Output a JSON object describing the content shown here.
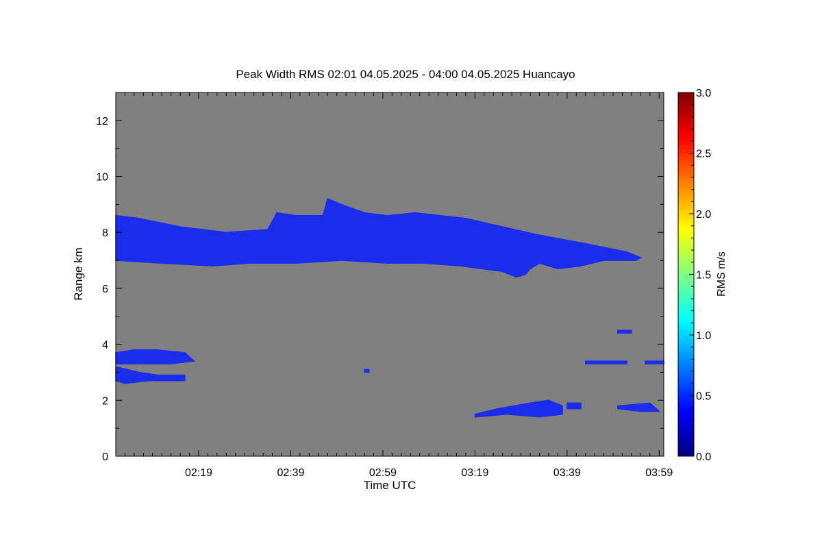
{
  "chart_data": {
    "type": "heatmap",
    "title": "Peak Width RMS   02:01 04.05.2025 - 04:00 04.05.2025 Huancayo",
    "xlabel": "Time UTC",
    "ylabel": "Range km",
    "colorbar_label": "RMS m/s",
    "x_range": [
      "02:01",
      "04:00"
    ],
    "x_ticks": [
      "02:19",
      "02:39",
      "02:59",
      "03:19",
      "03:39",
      "03:59"
    ],
    "ylim": [
      0,
      13
    ],
    "y_ticks": [
      "0",
      "2",
      "4",
      "6",
      "8",
      "10",
      "12"
    ],
    "colorbar_range": [
      0.0,
      3.0
    ],
    "colorbar_ticks": [
      "0.0",
      "0.5",
      "1.0",
      "1.5",
      "2.0",
      "2.5",
      "3.0"
    ],
    "background_color": "#808080",
    "colormap": [
      "#000080",
      "#0000ff",
      "#0080ff",
      "#00ffff",
      "#80ff80",
      "#ffff00",
      "#ff8000",
      "#ff0000",
      "#800000"
    ],
    "regions": [
      {
        "name": "upper cloud layer",
        "approx_rms": 0.4,
        "color": "#1a2cee",
        "outline": [
          [
            "02:01",
            8.6
          ],
          [
            "02:06",
            8.5
          ],
          [
            "02:15",
            8.2
          ],
          [
            "02:25",
            8.0
          ],
          [
            "02:34",
            8.1
          ],
          [
            "02:36",
            8.7
          ],
          [
            "02:40",
            8.6
          ],
          [
            "02:46",
            8.6
          ],
          [
            "02:47",
            9.2
          ],
          [
            "02:50",
            9.0
          ],
          [
            "02:55",
            8.7
          ],
          [
            "03:00",
            8.6
          ],
          [
            "03:06",
            8.7
          ],
          [
            "03:17",
            8.5
          ],
          [
            "03:25",
            8.2
          ],
          [
            "03:33",
            7.9
          ],
          [
            "03:43",
            7.6
          ],
          [
            "03:52",
            7.3
          ],
          [
            "03:55",
            7.1
          ],
          [
            "03:54",
            7.0
          ],
          [
            "03:47",
            7.0
          ],
          [
            "03:42",
            6.8
          ],
          [
            "03:37",
            6.7
          ],
          [
            "03:33",
            6.9
          ],
          [
            "03:31",
            6.7
          ],
          [
            "03:30",
            6.5
          ],
          [
            "03:28",
            6.4
          ],
          [
            "03:25",
            6.6
          ],
          [
            "03:16",
            6.8
          ],
          [
            "03:08",
            6.9
          ],
          [
            "03:00",
            6.9
          ],
          [
            "02:50",
            7.0
          ],
          [
            "02:40",
            6.9
          ],
          [
            "02:30",
            6.9
          ],
          [
            "02:22",
            6.8
          ],
          [
            "02:11",
            6.9
          ],
          [
            "02:01",
            7.0
          ]
        ]
      },
      {
        "name": "low cloud left upper",
        "approx_rms": 0.4,
        "color": "#1a2cee",
        "outline": [
          [
            "02:01",
            3.7
          ],
          [
            "02:05",
            3.8
          ],
          [
            "02:10",
            3.8
          ],
          [
            "02:16",
            3.7
          ],
          [
            "02:18",
            3.4
          ],
          [
            "02:13",
            3.3
          ],
          [
            "02:06",
            3.3
          ],
          [
            "02:01",
            3.3
          ]
        ]
      },
      {
        "name": "low cloud left lower",
        "approx_rms": 0.4,
        "color": "#1a2cee",
        "outline": [
          [
            "02:01",
            3.2
          ],
          [
            "02:06",
            3.0
          ],
          [
            "02:10",
            2.9
          ],
          [
            "02:16",
            2.9
          ],
          [
            "02:16",
            2.7
          ],
          [
            "02:08",
            2.7
          ],
          [
            "02:03",
            2.6
          ],
          [
            "02:01",
            2.7
          ]
        ]
      },
      {
        "name": "low cloud right",
        "approx_rms": 0.45,
        "color": "#1a2cee",
        "outline": [
          [
            "03:19",
            1.5
          ],
          [
            "03:24",
            1.7
          ],
          [
            "03:31",
            1.9
          ],
          [
            "03:35",
            2.0
          ],
          [
            "03:38",
            1.8
          ],
          [
            "03:38",
            1.5
          ],
          [
            "03:33",
            1.4
          ],
          [
            "03:26",
            1.5
          ],
          [
            "03:19",
            1.4
          ]
        ]
      },
      {
        "name": "speck 02:55",
        "approx_rms": 0.4,
        "color": "#1a2cee",
        "outline": [
          [
            "02:55",
            3.1
          ],
          [
            "02:56",
            3.1
          ],
          [
            "02:56",
            3.0
          ],
          [
            "02:55",
            3.0
          ]
        ]
      },
      {
        "name": "streak 03:47",
        "approx_rms": 0.4,
        "color": "#1a2cee",
        "outline": [
          [
            "03:43",
            3.4
          ],
          [
            "03:52",
            3.4
          ],
          [
            "03:52",
            3.3
          ],
          [
            "03:43",
            3.3
          ]
        ]
      },
      {
        "name": "streak 03:56",
        "approx_rms": 0.4,
        "color": "#1a2cee",
        "outline": [
          [
            "03:56",
            3.4
          ],
          [
            "04:00",
            3.4
          ],
          [
            "04:00",
            3.3
          ],
          [
            "03:56",
            3.3
          ]
        ]
      },
      {
        "name": "speck 03:51",
        "approx_rms": 0.4,
        "color": "#1a2cee",
        "outline": [
          [
            "03:50",
            4.5
          ],
          [
            "03:53",
            4.5
          ],
          [
            "03:53",
            4.4
          ],
          [
            "03:50",
            4.4
          ]
        ]
      },
      {
        "name": "speck 03:40",
        "approx_rms": 0.4,
        "color": "#1a2cee",
        "outline": [
          [
            "03:39",
            1.9
          ],
          [
            "03:42",
            1.9
          ],
          [
            "03:42",
            1.7
          ],
          [
            "03:39",
            1.7
          ]
        ]
      },
      {
        "name": "patch 03:52",
        "approx_rms": 0.4,
        "color": "#1a2cee",
        "outline": [
          [
            "03:50",
            1.8
          ],
          [
            "03:57",
            1.9
          ],
          [
            "03:59",
            1.6
          ],
          [
            "03:55",
            1.6
          ],
          [
            "03:50",
            1.7
          ]
        ]
      }
    ],
    "grid": false,
    "legend": "none"
  }
}
